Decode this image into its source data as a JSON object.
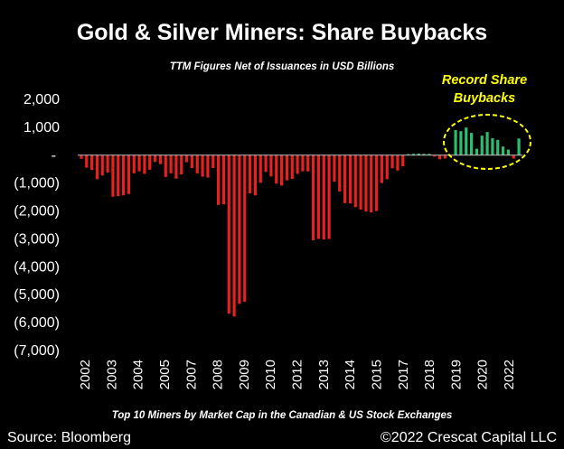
{
  "chart_data": {
    "type": "bar",
    "title": "Gold & Silver Miners: Share Buybacks",
    "subtitle": "TTM Figures Net of Issuances in USD Billions",
    "footnote": "Top 10 Miners by Market Cap in the Canadian & US Stock Exchanges",
    "source": "Source: Bloomberg",
    "copyright": "©2022 Crescat Capital LLC",
    "annotation": [
      "Record Share",
      "Buybacks"
    ],
    "xlabel": "",
    "ylabel": "",
    "ylim": [
      -7000,
      2000
    ],
    "y_ticks": [
      {
        "value": 2000,
        "label": "2,000"
      },
      {
        "value": 1000,
        "label": "1,000"
      },
      {
        "value": 0,
        "label": "-"
      },
      {
        "value": -1000,
        "label": "(1,000)"
      },
      {
        "value": -2000,
        "label": "(2,000)"
      },
      {
        "value": -3000,
        "label": "(3,000)"
      },
      {
        "value": -4000,
        "label": "(4,000)"
      },
      {
        "value": -5000,
        "label": "(5,000)"
      },
      {
        "value": -6000,
        "label": "(6,000)"
      },
      {
        "value": -7000,
        "label": "(7,000)"
      }
    ],
    "x_ticks": [
      "2002",
      "2003",
      "2004",
      "2005",
      "2007",
      "2008",
      "2009",
      "2010",
      "2012",
      "2013",
      "2014",
      "2015",
      "2017",
      "2018",
      "2019",
      "2020",
      "2022"
    ],
    "grid": false,
    "legend": "none",
    "colors": {
      "negative": "#e8211e",
      "positive": "#2dbd6e",
      "annotation": "#ffff00"
    },
    "values": [
      -130,
      -450,
      -530,
      -860,
      -730,
      -620,
      -1490,
      -1470,
      -1440,
      -1390,
      -650,
      -580,
      -670,
      -520,
      -240,
      -320,
      -780,
      -650,
      -840,
      -690,
      -250,
      -460,
      -650,
      -770,
      -800,
      -460,
      -1780,
      -1760,
      -5680,
      -5780,
      -5330,
      -5250,
      -1370,
      -1440,
      -990,
      -600,
      -760,
      -1020,
      -1090,
      -900,
      -850,
      -670,
      -580,
      -580,
      -3050,
      -3000,
      -3020,
      -3000,
      -950,
      -1300,
      -1720,
      -1730,
      -1860,
      -1950,
      -2020,
      -2050,
      -2000,
      -1000,
      -860,
      -470,
      -550,
      -400,
      40,
      50,
      60,
      50,
      50,
      -50,
      -150,
      -120,
      -30,
      900,
      860,
      990,
      800,
      230,
      700,
      830,
      610,
      550,
      310,
      200,
      -120,
      600
    ]
  }
}
